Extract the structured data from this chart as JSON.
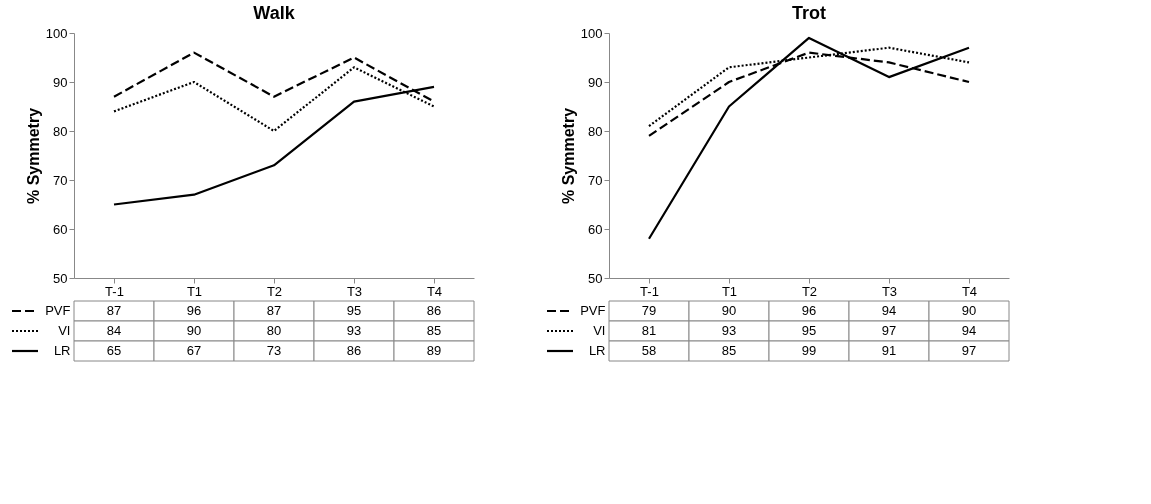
{
  "chart_data": [
    {
      "type": "line",
      "title": "Walk",
      "ylabel": "% Symmetry",
      "categories": [
        "T-1",
        "T1",
        "T2",
        "T3",
        "T4"
      ],
      "ylim": [
        50,
        100
      ],
      "yticks": [
        50,
        60,
        70,
        80,
        90,
        100
      ],
      "grid": false,
      "legend": "bottom",
      "data_labels": true,
      "series": [
        {
          "name": "PVF",
          "color": "#000000",
          "line_style": "dashed",
          "values": [
            87,
            96,
            87,
            95,
            86
          ]
        },
        {
          "name": "VI",
          "color": "#000000",
          "line_style": "dotted",
          "values": [
            84,
            90,
            80,
            93,
            85
          ]
        },
        {
          "name": "LR",
          "color": "#000000",
          "line_style": "solid",
          "values": [
            65,
            67,
            73,
            86,
            89
          ]
        }
      ]
    },
    {
      "type": "line",
      "title": "Trot",
      "ylabel": "% Symmetry",
      "categories": [
        "T-1",
        "T1",
        "T2",
        "T3",
        "T4"
      ],
      "ylim": [
        50,
        100
      ],
      "yticks": [
        50,
        60,
        70,
        80,
        90,
        100
      ],
      "grid": false,
      "legend": "bottom",
      "data_labels": true,
      "series": [
        {
          "name": "PVF",
          "color": "#000000",
          "line_style": "dashed",
          "values": [
            79,
            90,
            96,
            94,
            90
          ]
        },
        {
          "name": "VI",
          "color": "#000000",
          "line_style": "dotted",
          "values": [
            81,
            93,
            95,
            97,
            94
          ]
        },
        {
          "name": "LR",
          "color": "#000000",
          "line_style": "solid",
          "values": [
            58,
            85,
            99,
            91,
            97
          ]
        }
      ]
    }
  ]
}
